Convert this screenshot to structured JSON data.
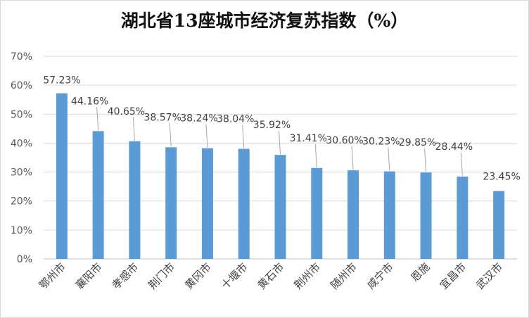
{
  "chart_data": {
    "type": "bar",
    "title": "湖北省13座城市经济复苏指数（%）",
    "categories": [
      "鄂州市",
      "襄阳市",
      "孝感市",
      "荆门市",
      "黄冈市",
      "十堰市",
      "黄石市",
      "荆州市",
      "随州市",
      "咸宁市",
      "恩施",
      "宜昌市",
      "武汉市"
    ],
    "values": [
      57.23,
      44.16,
      40.65,
      38.57,
      38.24,
      38.04,
      35.92,
      31.41,
      30.6,
      30.23,
      29.85,
      28.44,
      23.45
    ],
    "data_labels": [
      "57.23%",
      "44.16%",
      "40.65%",
      "38.57%",
      "38.24%",
      "38.04%",
      "35.92%",
      "31.41%",
      "30.60%",
      "30.23%",
      "29.85%",
      "28.44%",
      "23.45%"
    ],
    "y_ticks": [
      "0%",
      "10%",
      "20%",
      "30%",
      "40%",
      "50%",
      "60%",
      "70%"
    ],
    "ylim": [
      0,
      70
    ],
    "grid": true,
    "legend": "none",
    "bar_color": "#5b9bd5",
    "xlabel": "",
    "ylabel": ""
  }
}
